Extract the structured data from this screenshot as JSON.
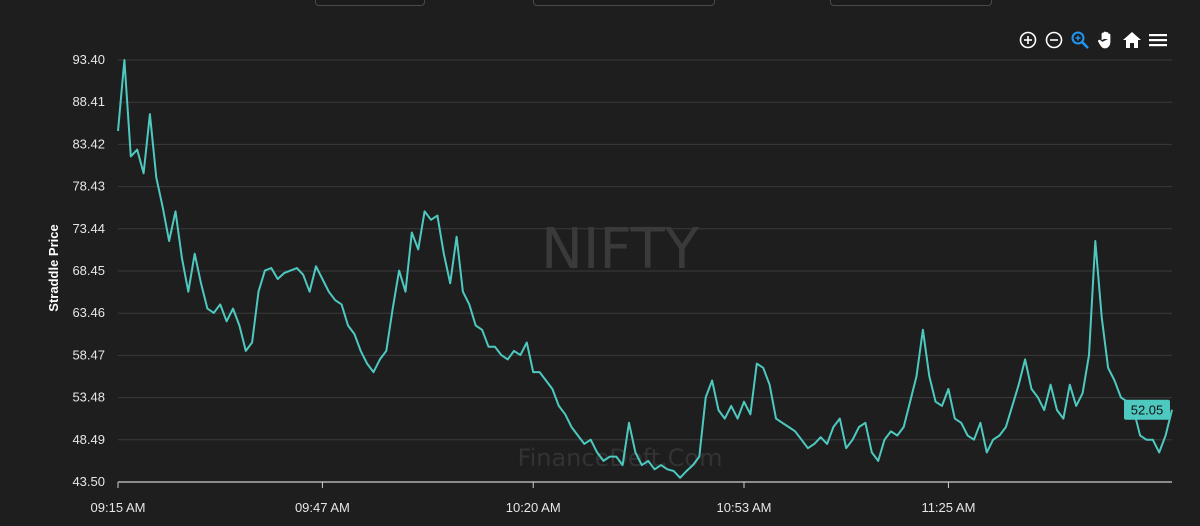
{
  "toolbar": {
    "icons": [
      "zoom-in-icon",
      "zoom-out-icon",
      "zoom-select-icon",
      "pan-hand-icon",
      "home-icon",
      "menu-icon"
    ],
    "active_color": "#2196f3"
  },
  "colors": {
    "line": "#4ec9c0",
    "background": "#1e1e1e",
    "grid": "#3a3a3a"
  },
  "chart_data": {
    "type": "line",
    "title": "",
    "watermark": "NIFTY",
    "watermark_secondary": "FinanceDeft.Com",
    "xlabel": "",
    "ylabel": "Straddle Price",
    "ylim": [
      43.5,
      93.4
    ],
    "yticks": [
      "93.40",
      "88.41",
      "83.42",
      "78.43",
      "73.44",
      "68.45",
      "63.46",
      "58.47",
      "53.48",
      "48.49",
      "43.50"
    ],
    "xticks": [
      {
        "label": "09:15 AM",
        "t": "09:15"
      },
      {
        "label": "09:47 AM",
        "t": "09:47"
      },
      {
        "label": "10:20 AM",
        "t": "10:20"
      },
      {
        "label": "10:53 AM",
        "t": "10:53"
      },
      {
        "label": "11:25 AM",
        "t": "11:25"
      }
    ],
    "xlim": [
      "09:15",
      "12:00"
    ],
    "last_value_label": "52.05",
    "grid": true,
    "series": [
      {
        "values": [
          [
            "09:15",
            85.0
          ],
          [
            "09:16",
            93.4
          ],
          [
            "09:17",
            82.0
          ],
          [
            "09:18",
            82.8
          ],
          [
            "09:19",
            80.0
          ],
          [
            "09:20",
            87.0
          ],
          [
            "09:21",
            79.5
          ],
          [
            "09:22",
            76.0
          ],
          [
            "09:23",
            72.0
          ],
          [
            "09:24",
            75.5
          ],
          [
            "09:25",
            70.0
          ],
          [
            "09:26",
            66.0
          ],
          [
            "09:27",
            70.5
          ],
          [
            "09:28",
            67.0
          ],
          [
            "09:29",
            64.0
          ],
          [
            "09:30",
            63.5
          ],
          [
            "09:31",
            64.5
          ],
          [
            "09:32",
            62.5
          ],
          [
            "09:33",
            64.0
          ],
          [
            "09:34",
            62.0
          ],
          [
            "09:35",
            59.0
          ],
          [
            "09:36",
            60.0
          ],
          [
            "09:37",
            66.0
          ],
          [
            "09:38",
            68.5
          ],
          [
            "09:39",
            68.8
          ],
          [
            "09:40",
            67.5
          ],
          [
            "09:41",
            68.2
          ],
          [
            "09:42",
            68.5
          ],
          [
            "09:43",
            68.8
          ],
          [
            "09:44",
            68.0
          ],
          [
            "09:45",
            66.0
          ],
          [
            "09:46",
            69.0
          ],
          [
            "09:47",
            67.5
          ],
          [
            "09:48",
            66.0
          ],
          [
            "09:49",
            65.0
          ],
          [
            "09:50",
            64.5
          ],
          [
            "09:51",
            62.0
          ],
          [
            "09:52",
            61.0
          ],
          [
            "09:53",
            59.0
          ],
          [
            "09:54",
            57.5
          ],
          [
            "09:55",
            56.5
          ],
          [
            "09:56",
            58.0
          ],
          [
            "09:57",
            59.0
          ],
          [
            "09:58",
            64.0
          ],
          [
            "09:59",
            68.5
          ],
          [
            "10:00",
            66.0
          ],
          [
            "10:01",
            73.0
          ],
          [
            "10:02",
            71.0
          ],
          [
            "10:03",
            75.5
          ],
          [
            "10:04",
            74.5
          ],
          [
            "10:05",
            75.0
          ],
          [
            "10:06",
            70.5
          ],
          [
            "10:07",
            67.0
          ],
          [
            "10:08",
            72.5
          ],
          [
            "10:09",
            66.0
          ],
          [
            "10:10",
            64.5
          ],
          [
            "10:11",
            62.0
          ],
          [
            "10:12",
            61.5
          ],
          [
            "10:13",
            59.5
          ],
          [
            "10:14",
            59.5
          ],
          [
            "10:15",
            58.5
          ],
          [
            "10:16",
            58.0
          ],
          [
            "10:17",
            59.0
          ],
          [
            "10:18",
            58.5
          ],
          [
            "10:19",
            60.0
          ],
          [
            "10:20",
            56.5
          ],
          [
            "10:21",
            56.5
          ],
          [
            "10:22",
            55.5
          ],
          [
            "10:23",
            54.5
          ],
          [
            "10:24",
            52.5
          ],
          [
            "10:25",
            51.5
          ],
          [
            "10:26",
            50.0
          ],
          [
            "10:27",
            49.0
          ],
          [
            "10:28",
            48.0
          ],
          [
            "10:29",
            48.5
          ],
          [
            "10:30",
            47.0
          ],
          [
            "10:31",
            46.0
          ],
          [
            "10:32",
            46.5
          ],
          [
            "10:33",
            46.5
          ],
          [
            "10:34",
            45.5
          ],
          [
            "10:35",
            50.5
          ],
          [
            "10:36",
            47.0
          ],
          [
            "10:37",
            45.5
          ],
          [
            "10:38",
            46.0
          ],
          [
            "10:39",
            45.0
          ],
          [
            "10:40",
            45.5
          ],
          [
            "10:41",
            45.0
          ],
          [
            "10:42",
            44.8
          ],
          [
            "10:43",
            44.0
          ],
          [
            "10:44",
            44.8
          ],
          [
            "10:45",
            45.5
          ],
          [
            "10:46",
            46.5
          ],
          [
            "10:47",
            53.5
          ],
          [
            "10:48",
            55.5
          ],
          [
            "10:49",
            52.0
          ],
          [
            "10:50",
            51.0
          ],
          [
            "10:51",
            52.5
          ],
          [
            "10:52",
            51.0
          ],
          [
            "10:53",
            53.0
          ],
          [
            "10:54",
            51.5
          ],
          [
            "10:55",
            57.5
          ],
          [
            "10:56",
            57.0
          ],
          [
            "10:57",
            55.0
          ],
          [
            "10:58",
            51.0
          ],
          [
            "10:59",
            50.5
          ],
          [
            "11:00",
            50.0
          ],
          [
            "11:01",
            49.5
          ],
          [
            "11:02",
            48.5
          ],
          [
            "11:03",
            47.5
          ],
          [
            "11:04",
            48.0
          ],
          [
            "11:05",
            48.8
          ],
          [
            "11:06",
            48.0
          ],
          [
            "11:07",
            50.0
          ],
          [
            "11:08",
            51.0
          ],
          [
            "11:09",
            47.5
          ],
          [
            "11:10",
            48.5
          ],
          [
            "11:11",
            50.0
          ],
          [
            "11:12",
            50.5
          ],
          [
            "11:13",
            47.0
          ],
          [
            "11:14",
            46.0
          ],
          [
            "11:15",
            48.5
          ],
          [
            "11:16",
            49.5
          ],
          [
            "11:17",
            49.0
          ],
          [
            "11:18",
            50.0
          ],
          [
            "11:19",
            53.0
          ],
          [
            "11:20",
            56.0
          ],
          [
            "11:21",
            61.5
          ],
          [
            "11:22",
            56.0
          ],
          [
            "11:23",
            53.0
          ],
          [
            "11:24",
            52.5
          ],
          [
            "11:25",
            54.5
          ],
          [
            "11:26",
            51.0
          ],
          [
            "11:27",
            50.5
          ],
          [
            "11:28",
            49.0
          ],
          [
            "11:29",
            48.5
          ],
          [
            "11:30",
            50.5
          ],
          [
            "11:31",
            47.0
          ],
          [
            "11:32",
            48.5
          ],
          [
            "11:33",
            49.0
          ],
          [
            "11:34",
            50.0
          ],
          [
            "11:35",
            52.5
          ],
          [
            "11:36",
            55.0
          ],
          [
            "11:37",
            58.0
          ],
          [
            "11:38",
            54.5
          ],
          [
            "11:39",
            53.5
          ],
          [
            "11:40",
            52.0
          ],
          [
            "11:41",
            55.0
          ],
          [
            "11:42",
            52.0
          ],
          [
            "11:43",
            51.0
          ],
          [
            "11:44",
            55.0
          ],
          [
            "11:45",
            52.5
          ],
          [
            "11:46",
            54.0
          ],
          [
            "11:47",
            58.5
          ],
          [
            "11:48",
            72.0
          ],
          [
            "11:49",
            63.0
          ],
          [
            "11:50",
            57.0
          ],
          [
            "11:51",
            55.5
          ],
          [
            "11:52",
            53.5
          ],
          [
            "11:53",
            53.0
          ],
          [
            "11:54",
            52.0
          ],
          [
            "11:55",
            49.0
          ],
          [
            "11:56",
            48.5
          ],
          [
            "11:57",
            48.5
          ],
          [
            "11:58",
            47.0
          ],
          [
            "11:59",
            49.0
          ],
          [
            "12:00",
            52.05
          ]
        ]
      }
    ]
  }
}
